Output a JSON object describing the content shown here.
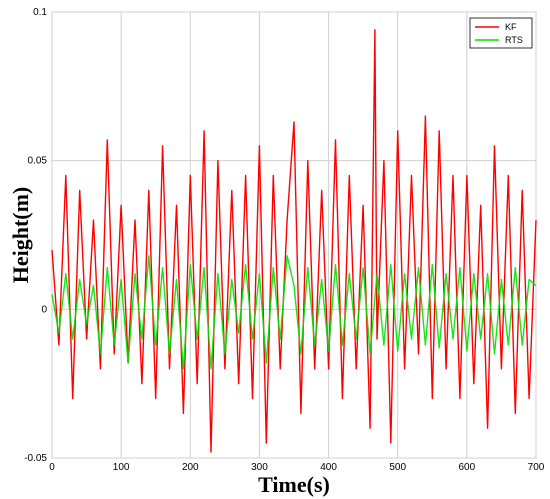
{
  "chart_data": {
    "type": "line",
    "title": "",
    "xlabel": "Time(s)",
    "ylabel": "Height(m)",
    "xlim": [
      0,
      700
    ],
    "ylim": [
      -0.05,
      0.1
    ],
    "xticks": [
      0,
      100,
      200,
      300,
      400,
      500,
      600,
      700
    ],
    "yticks": [
      -0.05,
      0,
      0.05,
      0.1
    ],
    "ytick_labels": [
      "-0.05",
      "0",
      "0.05",
      "0.1"
    ],
    "grid": true,
    "legend_position": "top-right",
    "series": [
      {
        "name": "KF",
        "color": "#ff0000",
        "x": [
          0,
          10,
          20,
          30,
          40,
          50,
          60,
          70,
          80,
          90,
          100,
          110,
          120,
          130,
          140,
          150,
          160,
          170,
          180,
          190,
          200,
          210,
          220,
          230,
          240,
          250,
          260,
          270,
          280,
          290,
          300,
          310,
          320,
          330,
          340,
          350,
          360,
          370,
          380,
          390,
          400,
          410,
          420,
          430,
          440,
          450,
          460,
          467,
          470,
          480,
          490,
          500,
          510,
          520,
          530,
          540,
          550,
          560,
          570,
          580,
          590,
          600,
          610,
          620,
          630,
          640,
          650,
          660,
          670,
          680,
          690,
          700
        ],
        "y": [
          0.02,
          -0.012,
          0.045,
          -0.03,
          0.04,
          -0.01,
          0.03,
          -0.02,
          0.057,
          -0.015,
          0.035,
          -0.018,
          0.03,
          -0.025,
          0.04,
          -0.03,
          0.055,
          -0.02,
          0.035,
          -0.035,
          0.045,
          -0.025,
          0.06,
          -0.048,
          0.05,
          -0.02,
          0.04,
          -0.025,
          0.045,
          -0.03,
          0.055,
          -0.045,
          0.045,
          -0.02,
          0.03,
          0.063,
          -0.035,
          0.05,
          -0.02,
          0.04,
          -0.02,
          0.057,
          -0.03,
          0.045,
          -0.02,
          0.035,
          -0.04,
          0.094,
          -0.01,
          0.05,
          -0.045,
          0.06,
          -0.02,
          0.045,
          -0.015,
          0.065,
          -0.03,
          0.06,
          -0.02,
          0.045,
          -0.03,
          0.045,
          -0.025,
          0.035,
          -0.04,
          0.055,
          -0.02,
          0.045,
          -0.035,
          0.04,
          -0.03,
          0.03
        ]
      },
      {
        "name": "RTS",
        "color": "#00e000",
        "x": [
          0,
          10,
          20,
          30,
          40,
          50,
          60,
          70,
          80,
          90,
          100,
          110,
          120,
          130,
          140,
          150,
          160,
          170,
          180,
          190,
          200,
          210,
          220,
          230,
          240,
          250,
          260,
          270,
          280,
          290,
          300,
          310,
          320,
          330,
          340,
          350,
          360,
          370,
          380,
          390,
          400,
          410,
          420,
          430,
          440,
          450,
          460,
          470,
          480,
          490,
          500,
          510,
          520,
          530,
          540,
          550,
          560,
          570,
          580,
          590,
          600,
          610,
          620,
          630,
          640,
          650,
          660,
          670,
          680,
          690,
          700
        ],
        "y": [
          0.005,
          -0.008,
          0.012,
          -0.01,
          0.01,
          -0.005,
          0.008,
          -0.015,
          0.014,
          -0.012,
          0.01,
          -0.018,
          0.012,
          -0.01,
          0.018,
          -0.012,
          0.014,
          -0.015,
          0.01,
          -0.02,
          0.015,
          -0.01,
          0.014,
          -0.02,
          0.012,
          -0.015,
          0.01,
          -0.008,
          0.015,
          -0.01,
          0.012,
          -0.018,
          0.014,
          -0.01,
          0.018,
          0.008,
          -0.015,
          0.014,
          -0.012,
          0.01,
          -0.014,
          0.015,
          -0.012,
          0.012,
          -0.01,
          0.014,
          -0.015,
          0.012,
          -0.012,
          0.015,
          -0.014,
          0.012,
          -0.01,
          0.014,
          -0.012,
          0.015,
          -0.013,
          0.012,
          -0.01,
          0.014,
          -0.014,
          0.012,
          -0.01,
          0.012,
          -0.015,
          0.01,
          -0.012,
          0.014,
          -0.012,
          0.01,
          0.008
        ]
      }
    ]
  }
}
